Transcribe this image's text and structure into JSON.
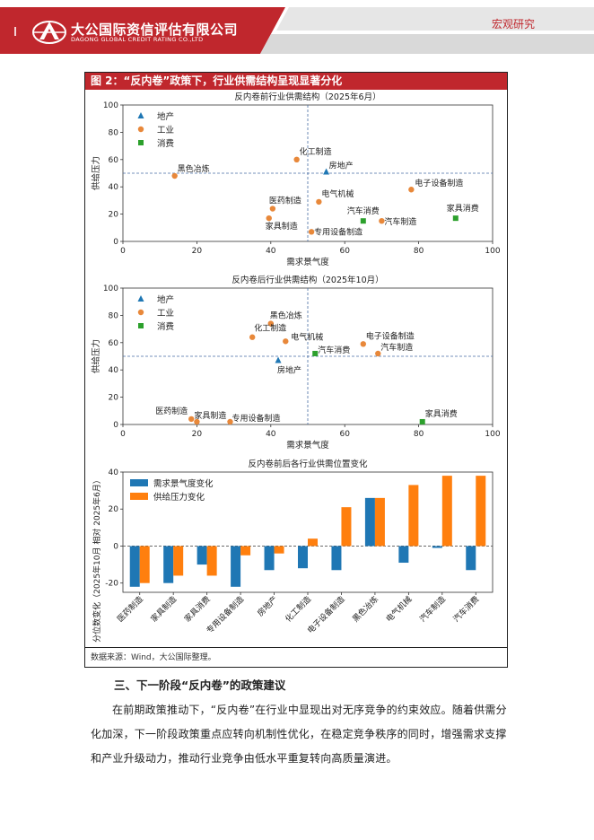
{
  "header": {
    "company_cn": "大公国际资信评估有限公司",
    "company_en": "DAGONG GLOBAL CREDIT RATING CO.,LTD",
    "report_type": "宏观研究",
    "colors": {
      "brand": "#c0272d",
      "gray": "#d9d9d9"
    }
  },
  "figure": {
    "title": "图 2：“反内卷”政策下，行业供需结构呈现显著分化",
    "source": "数据来源：Wind，大公国际整理。"
  },
  "chart_data": [
    {
      "type": "scatter",
      "title": "反内卷前行业供需结构（2025年6月）",
      "xlabel": "需求景气度",
      "ylabel": "供给压力",
      "xlim": [
        0,
        100
      ],
      "ylim": [
        0,
        100
      ],
      "xticks": [
        "0",
        "20",
        "40",
        "60",
        "80",
        "100"
      ],
      "yticks": [
        "0",
        "20",
        "40",
        "60",
        "80",
        "100"
      ],
      "ref_x": 50,
      "ref_y": 50,
      "legend": [
        "地产",
        "工业",
        "消费"
      ],
      "points": [
        {
          "name": "黑色冶炼",
          "group": "工业",
          "x": 14,
          "y": 48
        },
        {
          "name": "化工制造",
          "group": "工业",
          "x": 47,
          "y": 60
        },
        {
          "name": "房地产",
          "group": "地产",
          "x": 55,
          "y": 51
        },
        {
          "name": "电子设备制造",
          "group": "工业",
          "x": 78,
          "y": 38
        },
        {
          "name": "医药制造",
          "group": "工业",
          "x": 40.5,
          "y": 24
        },
        {
          "name": "电气机械",
          "group": "工业",
          "x": 53,
          "y": 29
        },
        {
          "name": "家具制造",
          "group": "工业",
          "x": 39.5,
          "y": 17
        },
        {
          "name": "专用设备制造",
          "group": "工业",
          "x": 51,
          "y": 7
        },
        {
          "name": "汽车消费",
          "group": "消费",
          "x": 65,
          "y": 15
        },
        {
          "name": "汽车制造",
          "group": "工业",
          "x": 70,
          "y": 15
        },
        {
          "name": "家具消费",
          "group": "消费",
          "x": 90,
          "y": 17
        }
      ]
    },
    {
      "type": "scatter",
      "title": "反内卷后行业供需结构（2025年10月）",
      "xlabel": "需求景气度",
      "ylabel": "供给压力",
      "xlim": [
        0,
        100
      ],
      "ylim": [
        0,
        100
      ],
      "xticks": [
        "0",
        "20",
        "40",
        "60",
        "80",
        "100"
      ],
      "yticks": [
        "0",
        "20",
        "40",
        "60",
        "80",
        "100"
      ],
      "ref_x": 50,
      "ref_y": 50,
      "legend": [
        "地产",
        "工业",
        "消费"
      ],
      "points": [
        {
          "name": "黑色冶炼",
          "group": "工业",
          "x": 40,
          "y": 74
        },
        {
          "name": "化工制造",
          "group": "工业",
          "x": 35,
          "y": 64
        },
        {
          "name": "电气机械",
          "group": "工业",
          "x": 44,
          "y": 61
        },
        {
          "name": "电子设备制造",
          "group": "工业",
          "x": 65,
          "y": 59
        },
        {
          "name": "汽车制造",
          "group": "工业",
          "x": 69,
          "y": 52
        },
        {
          "name": "汽车消费",
          "group": "消费",
          "x": 52,
          "y": 52
        },
        {
          "name": "房地产",
          "group": "地产",
          "x": 42,
          "y": 47
        },
        {
          "name": "医药制造",
          "group": "工业",
          "x": 18.5,
          "y": 4
        },
        {
          "name": "家具制造",
          "group": "工业",
          "x": 20,
          "y": 2
        },
        {
          "name": "专用设备制造",
          "group": "工业",
          "x": 29,
          "y": 2
        },
        {
          "name": "家具消费",
          "group": "消费",
          "x": 81,
          "y": 2
        }
      ]
    },
    {
      "type": "bar",
      "title": "反内卷前后各行业供需位置变化",
      "ylabel": "分位数变化（2025年10月 相对 2025年6月）",
      "ylim": [
        -25,
        40
      ],
      "yticks": [
        "-20",
        "0",
        "20",
        "40"
      ],
      "categories": [
        "医药制造",
        "家具制造",
        "家具消费",
        "专用设备制造",
        "房地产",
        "化工制造",
        "电子设备制造",
        "黑色冶炼",
        "电气机械",
        "汽车制造",
        "汽车消费"
      ],
      "series": [
        {
          "name": "需求景气度变化",
          "color": "#1f77b4",
          "values": [
            -22,
            -20,
            -10,
            -22,
            -13,
            -12,
            -13,
            26,
            -9,
            -1,
            -13
          ]
        },
        {
          "name": "供给压力变化",
          "color": "#ff7f0e",
          "values": [
            -20,
            -16,
            -16,
            -5,
            -4,
            4,
            21,
            26,
            33,
            38,
            38
          ]
        }
      ]
    }
  ],
  "section": {
    "heading": "三、下一阶段“反内卷”的政策建议",
    "paragraph": "在前期政策推动下，“反内卷”在行业中显现出对无序竞争的约束效应。随着供需分化加深，下一阶段政策重点应转向机制性优化，在稳定竞争秩序的同时，增强需求支撑和产业升级动力，推动行业竞争由低水平重复转向高质量演进。"
  }
}
